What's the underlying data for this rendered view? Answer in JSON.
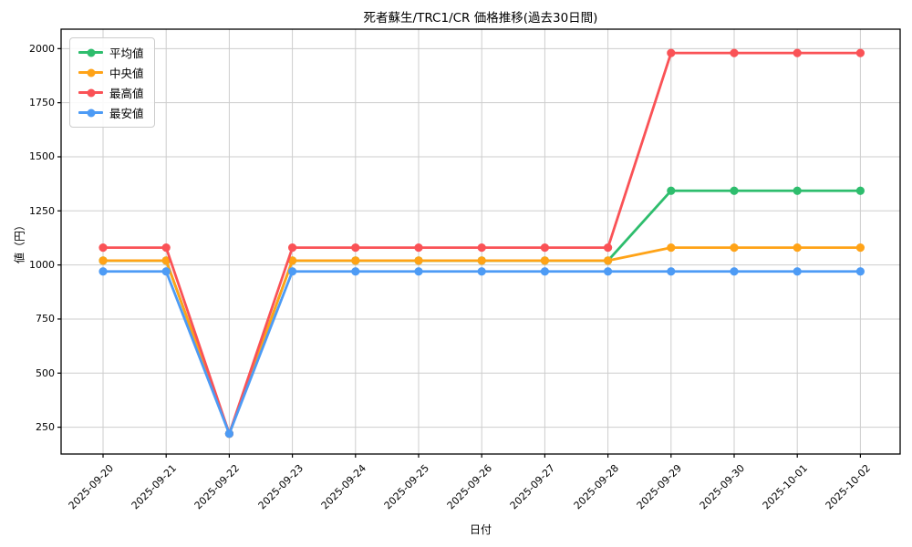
{
  "title": "死者蘇生/TRC1/CR 価格推移(過去30日間)",
  "chart_data": {
    "type": "line",
    "title": "死者蘇生/TRC1/CR 価格推移(過去30日間)",
    "xlabel": "日付",
    "ylabel": "値（円）",
    "x": [
      "2025-09-20",
      "2025-09-21",
      "2025-09-22",
      "2025-09-23",
      "2025-09-24",
      "2025-09-25",
      "2025-09-26",
      "2025-09-27",
      "2025-09-28",
      "2025-09-29",
      "2025-09-30",
      "2025-10-01",
      "2025-10-02"
    ],
    "series": [
      {
        "key": "average",
        "name": "平均値",
        "color": "#2ebd6d",
        "values": [
          1020,
          1020,
          220,
          1020,
          1020,
          1020,
          1020,
          1020,
          1020,
          1343,
          1343,
          1343,
          1343
        ]
      },
      {
        "key": "median",
        "name": "中央値",
        "color": "#ffa317",
        "values": [
          1020,
          1020,
          220,
          1020,
          1020,
          1020,
          1020,
          1020,
          1020,
          1080,
          1080,
          1080,
          1080
        ]
      },
      {
        "key": "max",
        "name": "最高値",
        "color": "#fa5256",
        "values": [
          1080,
          1080,
          220,
          1080,
          1080,
          1080,
          1080,
          1080,
          1080,
          1980,
          1980,
          1980,
          1980
        ]
      },
      {
        "key": "min",
        "name": "最安値",
        "color": "#4d9bf5",
        "values": [
          970,
          970,
          220,
          970,
          970,
          970,
          970,
          970,
          970,
          970,
          970,
          970,
          970
        ]
      }
    ],
    "yticks": [
      250,
      500,
      750,
      1000,
      1250,
      1500,
      1750,
      2000
    ],
    "ylim": [
      126,
      2090
    ],
    "grid": true,
    "legend_position": "upper-left",
    "grid_color": "#cdcdcd",
    "spine_color": "#000000"
  }
}
